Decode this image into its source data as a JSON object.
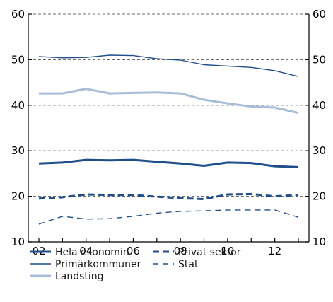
{
  "chart_data": {
    "type": "line",
    "title": "",
    "xlabel": "",
    "ylabel": "",
    "x": [
      2,
      3,
      4,
      5,
      6,
      7,
      8,
      9,
      10,
      11,
      12,
      13
    ],
    "xlim": [
      1.55,
      13.45
    ],
    "ylim": [
      10,
      60
    ],
    "x_ticks": [
      2,
      4,
      6,
      8,
      10,
      12
    ],
    "x_tick_labels": [
      "02",
      "04",
      "06",
      "08",
      "10",
      "12"
    ],
    "y_ticks": [
      10,
      20,
      30,
      40,
      50,
      60
    ],
    "y_tick_labels": [
      "10",
      "20",
      "30",
      "40",
      "50",
      "60"
    ],
    "y_axis_both_sides": true,
    "grid": "horizontal dashed",
    "legend_position": "bottom",
    "series": [
      {
        "name": "Hela ekonomin",
        "color": "#1f4e8c",
        "style": "solid",
        "weight": "thick",
        "values": [
          27.2,
          27.4,
          28.0,
          27.9,
          28.0,
          27.6,
          27.2,
          26.7,
          27.4,
          27.3,
          26.6,
          26.4
        ]
      },
      {
        "name": "Primärkommuner",
        "color": "#1f4e8c",
        "style": "solid",
        "weight": "thin",
        "values": [
          50.7,
          50.4,
          50.5,
          51.0,
          50.9,
          50.2,
          49.9,
          48.9,
          48.6,
          48.3,
          47.6,
          46.3
        ]
      },
      {
        "name": "Landsting",
        "color": "#a6bcd9",
        "style": "solid",
        "weight": "thick",
        "values": [
          42.6,
          42.6,
          43.6,
          42.6,
          42.7,
          42.8,
          42.6,
          41.2,
          40.4,
          39.7,
          39.5,
          38.3
        ]
      },
      {
        "name": "Privat sektor",
        "color": "#1f4e8c",
        "style": "dashed",
        "weight": "thick",
        "values": [
          19.5,
          19.8,
          20.4,
          20.3,
          20.3,
          19.9,
          19.6,
          19.4,
          20.4,
          20.5,
          20.0,
          20.3
        ]
      },
      {
        "name": "Stat",
        "color": "#1f4e8c",
        "style": "dashed",
        "weight": "thin",
        "values": [
          13.9,
          15.6,
          15.0,
          15.1,
          15.6,
          16.3,
          16.7,
          16.8,
          17.0,
          17.0,
          17.0,
          15.4
        ]
      }
    ]
  }
}
